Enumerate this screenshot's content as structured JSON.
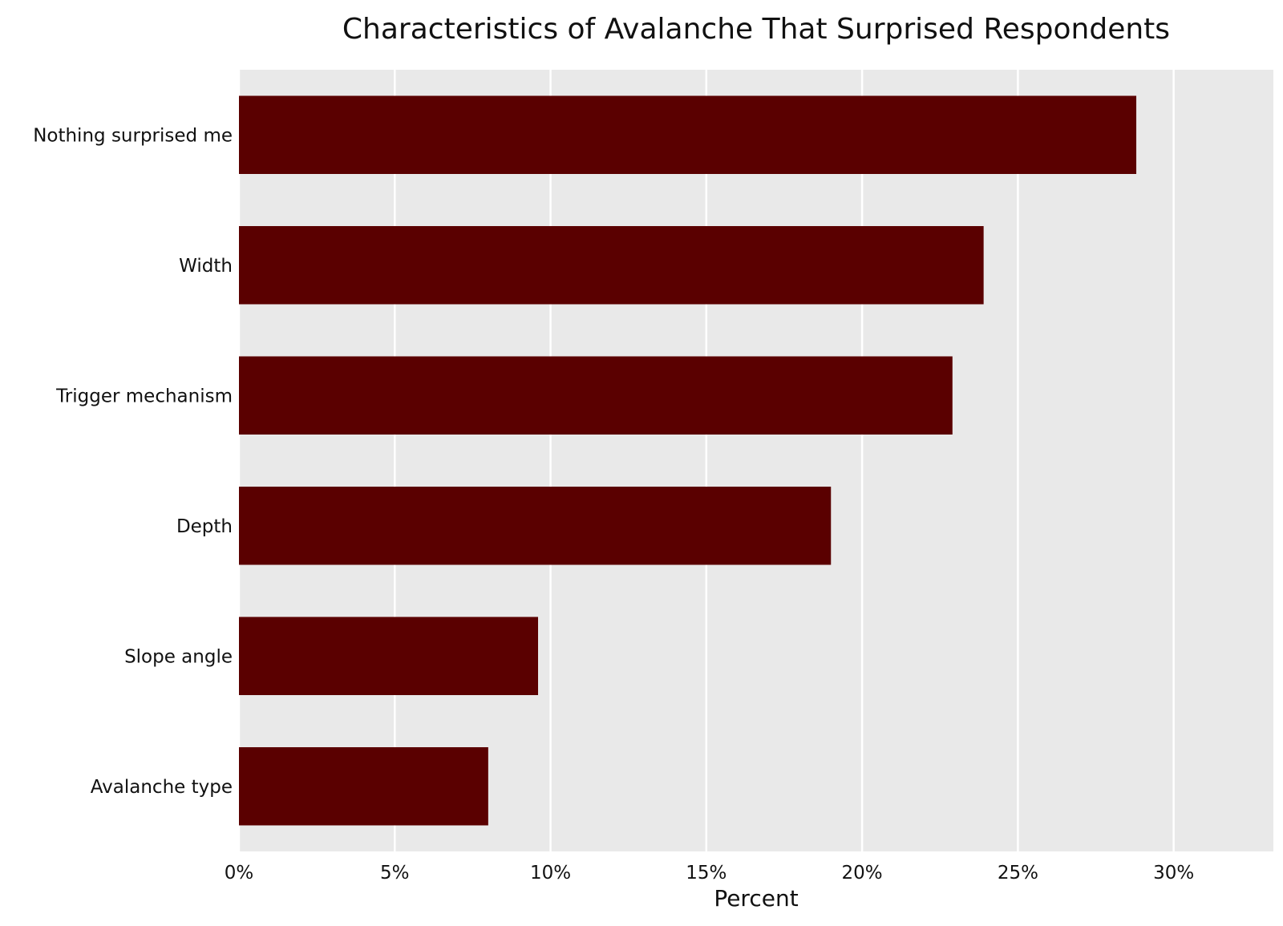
{
  "chart_data": {
    "type": "bar",
    "orientation": "horizontal",
    "title": "Characteristics of Avalanche That Surprised Respondents",
    "xlabel": "Percent",
    "ylabel": "",
    "categories": [
      "Nothing surprised me",
      "Width",
      "Trigger mechanism",
      "Depth",
      "Slope angle",
      "Avalanche type"
    ],
    "values": [
      28.8,
      23.9,
      22.9,
      19.0,
      9.6,
      8.0
    ],
    "xlim": [
      0,
      33.2
    ],
    "xticks": [
      0,
      5,
      10,
      15,
      20,
      25,
      30
    ],
    "xtick_labels": [
      "0%",
      "5%",
      "10%",
      "15%",
      "20%",
      "25%",
      "30%"
    ],
    "grid": true,
    "grid_axis": "x",
    "legend": "none",
    "colors": {
      "bar": "#5a0000",
      "panel_background": "#e9e9e9",
      "grid": "#ffffff"
    }
  }
}
